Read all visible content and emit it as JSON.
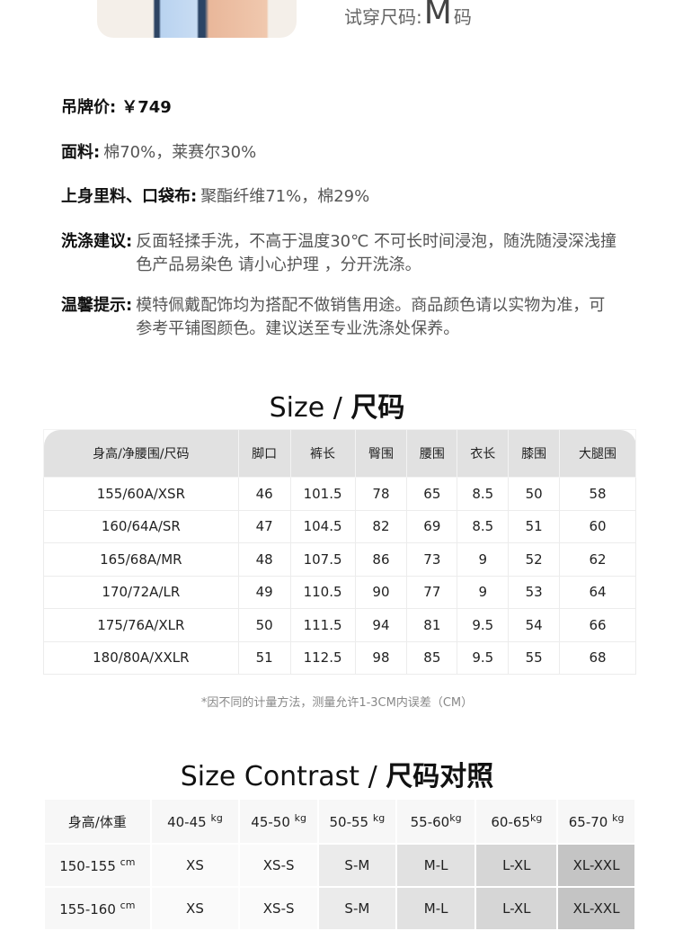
{
  "tryon": {
    "label": "试穿尺码:",
    "size": "M",
    "suffix": "码"
  },
  "specs": [
    {
      "key": "吊牌价:",
      "value": "￥749"
    },
    {
      "key": "面料:",
      "value": "棉70%，莱赛尔30%"
    },
    {
      "key": "上身里料、口袋布:",
      "value": "聚酯纤维71%，棉29%"
    },
    {
      "key": "洗涤建议:",
      "value": "反面轻揉手洗，不高于温度30℃ 不可长时间浸泡，随洗随浸深浅撞色产品易染色 请小心护理 ，分开洗涤。"
    },
    {
      "key": "温馨提示:",
      "value": "模特佩戴配饰均为搭配不做销售用途。商品颜色请以实物为准，可参考平铺图颜色。建议送至专业洗涤处保养。"
    }
  ],
  "size_table": {
    "title_en": "Size / ",
    "title_cn": "尺码",
    "headers": [
      "身高/净腰围/尺码",
      "脚口",
      "裤长",
      "臀围",
      "腰围",
      "衣长",
      "膝围",
      "大腿围"
    ],
    "rows": [
      [
        "155/60A/XSR",
        "46",
        "101.5",
        "78",
        "65",
        "8.5",
        "50",
        "58"
      ],
      [
        "160/64A/SR",
        "47",
        "104.5",
        "82",
        "69",
        "8.5",
        "51",
        "60"
      ],
      [
        "165/68A/MR",
        "48",
        "107.5",
        "86",
        "73",
        "9",
        "52",
        "62"
      ],
      [
        "170/72A/LR",
        "49",
        "110.5",
        "90",
        "77",
        "9",
        "53",
        "64"
      ],
      [
        "175/76A/XLR",
        "50",
        "111.5",
        "94",
        "81",
        "9.5",
        "54",
        "66"
      ],
      [
        "180/80A/XXLR",
        "51",
        "112.5",
        "98",
        "85",
        "9.5",
        "55",
        "68"
      ]
    ],
    "note": "*因不同的计量方法，测量允许1-3CM内误差（CM）"
  },
  "contrast_table": {
    "title_en": "Size Contrast / ",
    "title_cn": "尺码对照",
    "corner": "身高/体重",
    "weights": [
      {
        "v": "40-45 ",
        "u": "kg"
      },
      {
        "v": "45-50 ",
        "u": "kg"
      },
      {
        "v": "50-55 ",
        "u": "kg"
      },
      {
        "v": "55-60",
        "u": "kg"
      },
      {
        "v": "60-65",
        "u": "kg"
      },
      {
        "v": "65-70 ",
        "u": "kg"
      }
    ],
    "rows": [
      {
        "h": "150-155 ",
        "u": "cm",
        "cells": [
          "XS",
          "XS-S",
          "S-M",
          "M-L",
          "L-XL",
          "XL-XXL"
        ]
      },
      {
        "h": "155-160 ",
        "u": "cm",
        "cells": [
          "XS",
          "XS-S",
          "S-M",
          "M-L",
          "L-XL",
          "XL-XXL"
        ]
      }
    ]
  }
}
